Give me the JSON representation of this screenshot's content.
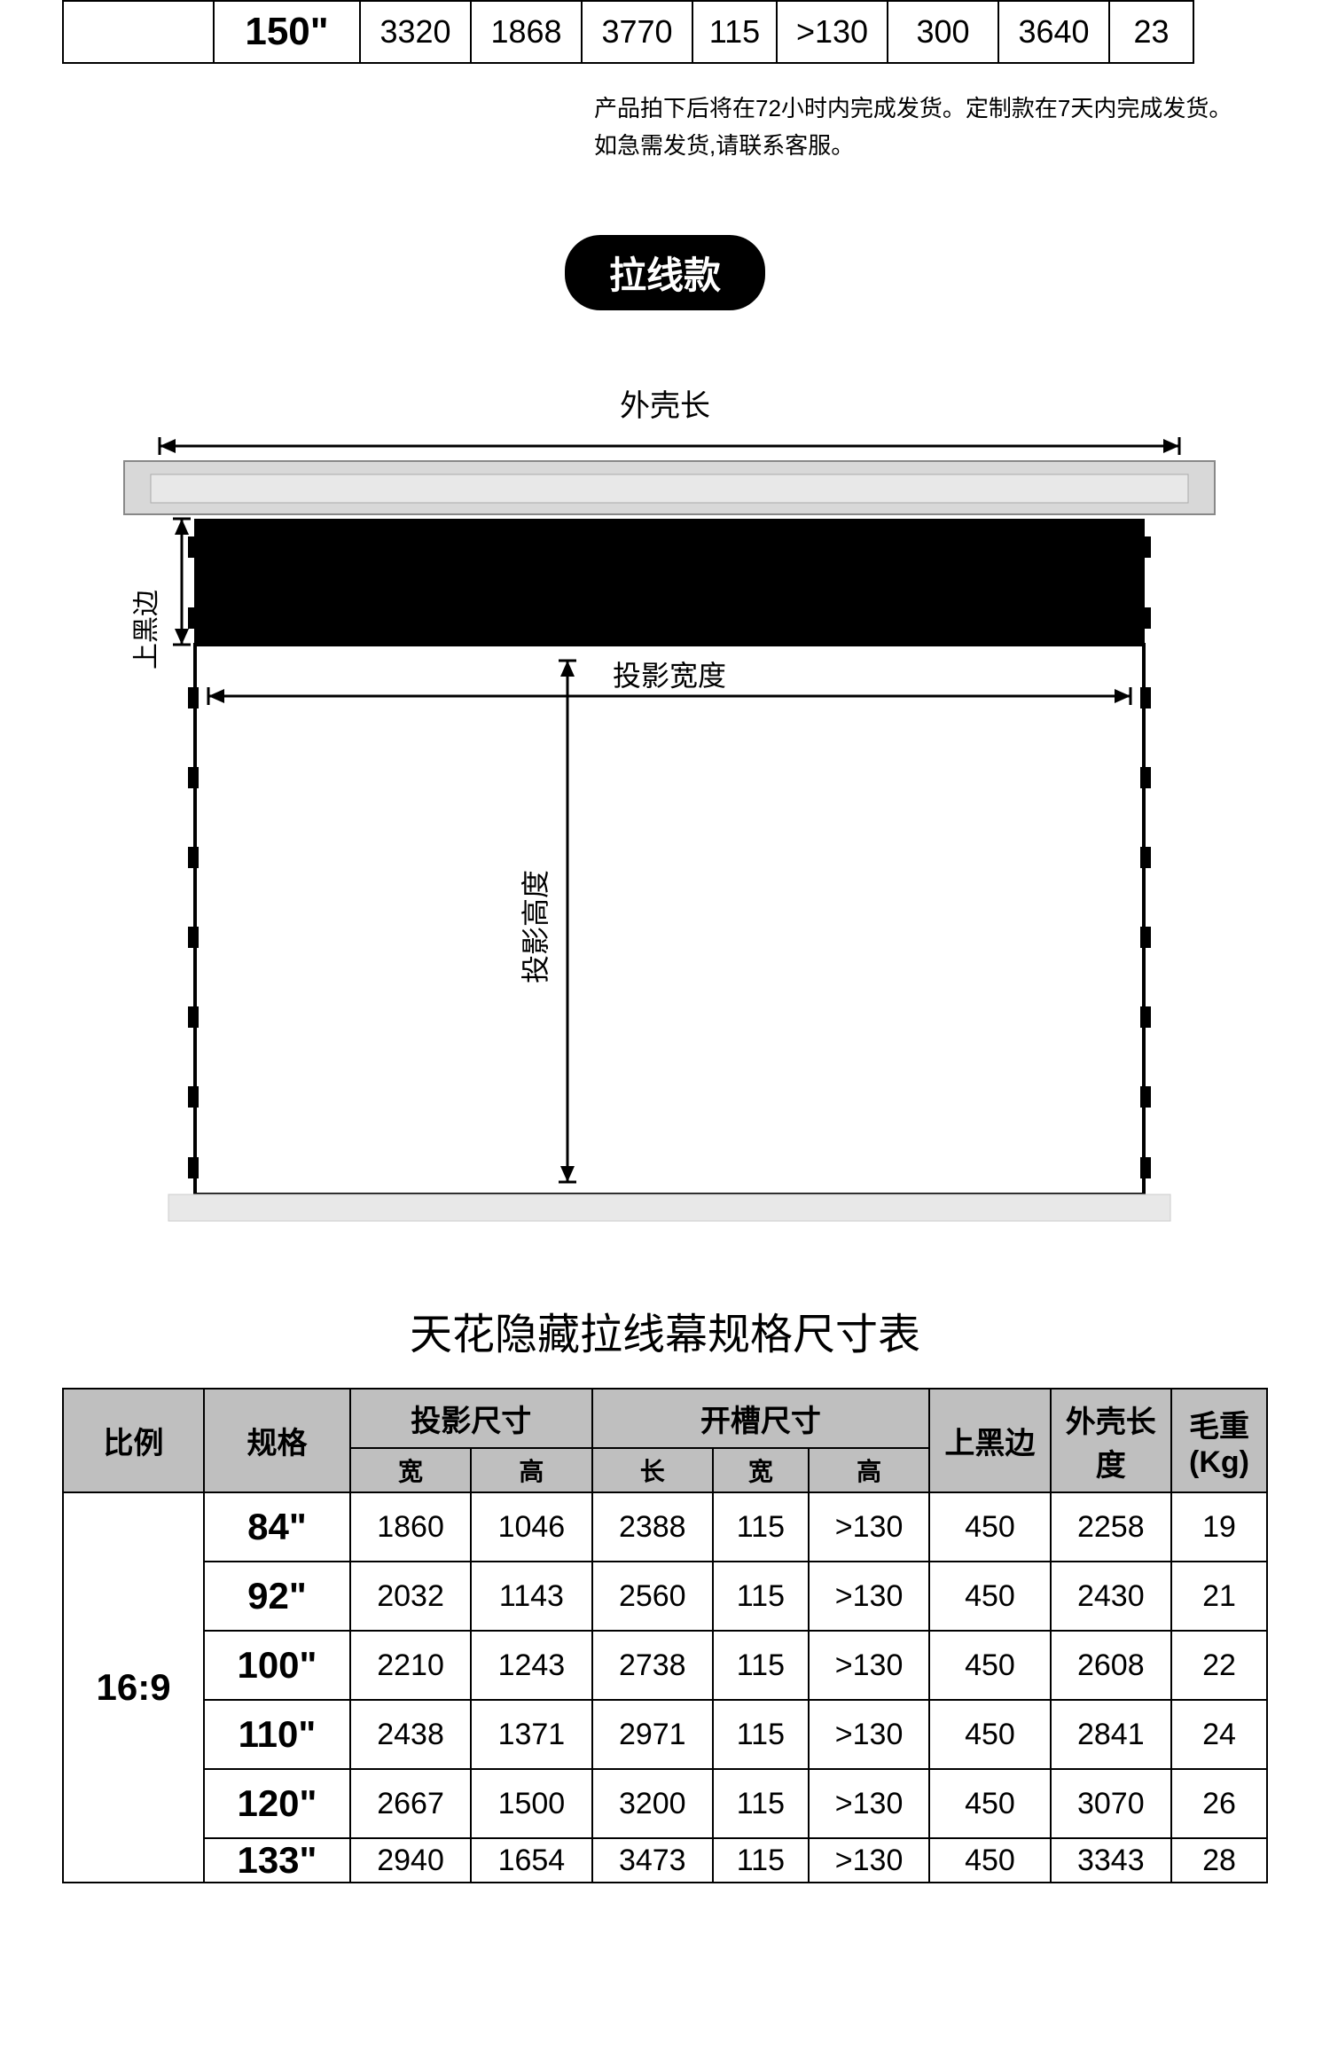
{
  "top_row": {
    "spec": "150\"",
    "cells": [
      "3320",
      "1868",
      "3770",
      "115",
      ">130",
      "300",
      "3640",
      "23"
    ]
  },
  "notice": {
    "line1": "产品拍下后将在72小时内完成发货。定制款在7天内完成发货。",
    "line2": "如急需发货,请联系客服。"
  },
  "pill": "拉线款",
  "diagram": {
    "label_outer_length": "外壳长",
    "label_top_black": "上黑边",
    "label_proj_width": "投影宽度",
    "label_proj_height": "投影高度",
    "colors": {
      "housing_fill": "#d8d8d8",
      "housing_stroke": "#888888",
      "black_band": "#000000",
      "screen_fill": "#ffffff",
      "frame_stroke": "#000000",
      "bottom_bar": "#e8e8e8"
    }
  },
  "section_title": "天花隐藏拉线幕规格尺寸表",
  "spec_table": {
    "headers": {
      "ratio": "比例",
      "spec": "规格",
      "proj_size": "投影尺寸",
      "slot_size": "开槽尺寸",
      "top_black": "上黑边",
      "outer_length": "外壳长度",
      "weight": "毛重(Kg)",
      "width": "宽",
      "height": "高",
      "length": "长"
    },
    "ratio": "16:9",
    "rows": [
      {
        "spec": "84\"",
        "pw": "1860",
        "ph": "1046",
        "sl": "2388",
        "sw": "115",
        "sh": ">130",
        "tb": "450",
        "ol": "2258",
        "wt": "19"
      },
      {
        "spec": "92\"",
        "pw": "2032",
        "ph": "1143",
        "sl": "2560",
        "sw": "115",
        "sh": ">130",
        "tb": "450",
        "ol": "2430",
        "wt": "21"
      },
      {
        "spec": "100\"",
        "pw": "2210",
        "ph": "1243",
        "sl": "2738",
        "sw": "115",
        "sh": ">130",
        "tb": "450",
        "ol": "2608",
        "wt": "22"
      },
      {
        "spec": "110\"",
        "pw": "2438",
        "ph": "1371",
        "sl": "2971",
        "sw": "115",
        "sh": ">130",
        "tb": "450",
        "ol": "2841",
        "wt": "24"
      },
      {
        "spec": "120\"",
        "pw": "2667",
        "ph": "1500",
        "sl": "3200",
        "sw": "115",
        "sh": ">130",
        "tb": "450",
        "ol": "3070",
        "wt": "26"
      },
      {
        "spec": "133\"",
        "pw": "2940",
        "ph": "1654",
        "sl": "3473",
        "sw": "115",
        "sh": ">130",
        "tb": "450",
        "ol": "3343",
        "wt": "28"
      }
    ]
  }
}
